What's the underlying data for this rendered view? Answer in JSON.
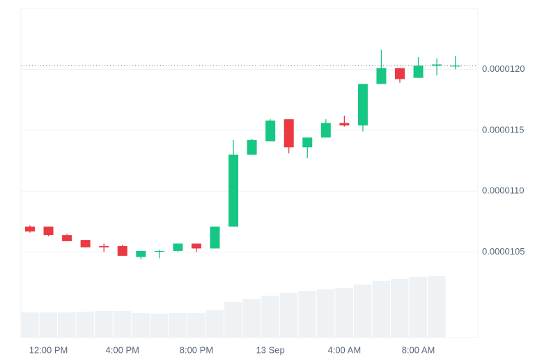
{
  "chart_data": {
    "type": "candlestick",
    "categories": [
      null,
      "12:00 PM",
      null,
      null,
      null,
      "4:00 PM",
      null,
      null,
      null,
      "8:00 PM",
      null,
      null,
      null,
      "13 Sep",
      null,
      null,
      null,
      "4:00 AM",
      null,
      null,
      null,
      "8:00 AM",
      null,
      null
    ],
    "open": [
      1.071e-05,
      1.071e-05,
      1.064e-05,
      1.06e-05,
      1.055e-05,
      1.055e-05,
      1.046e-05,
      1.051e-05,
      1.051e-05,
      1.057e-05,
      1.053e-05,
      1.071e-05,
      1.13e-05,
      1.141e-05,
      1.159e-05,
      1.136e-05,
      1.144e-05,
      1.156e-05,
      1.154e-05,
      1.188e-05,
      1.201e-05,
      1.193e-05,
      1.203e-05,
      1.203e-05
    ],
    "high": [
      1.072e-05,
      1.071e-05,
      1.065e-05,
      1.06e-05,
      1.057e-05,
      1.056e-05,
      1.051e-05,
      1.052e-05,
      1.057e-05,
      1.057e-05,
      1.071e-05,
      1.142e-05,
      1.143e-05,
      1.159e-05,
      1.159e-05,
      1.144e-05,
      1.159e-05,
      1.162e-05,
      1.188e-05,
      1.216e-05,
      1.201e-05,
      1.21e-05,
      1.209e-05,
      1.211e-05
    ],
    "low": [
      1.066e-05,
      1.063e-05,
      1.059e-05,
      1.054e-05,
      1.05e-05,
      1.047e-05,
      1.044e-05,
      1.045e-05,
      1.05e-05,
      1.05e-05,
      1.053e-05,
      1.071e-05,
      1.13e-05,
      1.141e-05,
      1.131e-05,
      1.127e-05,
      1.144e-05,
      1.153e-05,
      1.149e-05,
      1.188e-05,
      1.189e-05,
      1.193e-05,
      1.195e-05,
      1.2e-05
    ],
    "close": [
      1.067e-05,
      1.064e-05,
      1.059e-05,
      1.054e-05,
      1.054e-05,
      1.047e-05,
      1.051e-05,
      1.051e-05,
      1.057e-05,
      1.053e-05,
      1.071e-05,
      1.13e-05,
      1.142e-05,
      1.158e-05,
      1.136e-05,
      1.144e-05,
      1.156e-05,
      1.154e-05,
      1.188e-05,
      1.201e-05,
      1.192e-05,
      1.203e-05,
      1.204e-05,
      1.203e-05
    ],
    "volume": [
      36,
      36,
      36,
      37,
      38,
      38,
      35,
      34,
      35,
      35,
      39,
      51,
      55,
      60,
      64,
      67,
      69,
      71,
      76,
      81,
      84,
      87,
      88,
      null
    ],
    "up_color": "#16c784",
    "down_color": "#ea3943",
    "volume_color": "#eff2f5",
    "ylim": [
      9.8e-06,
      1.25e-05
    ],
    "yticks": [
      {
        "value": 1.05e-05,
        "label": "0.0000105"
      },
      {
        "value": 1.1e-05,
        "label": "0.0000110"
      },
      {
        "value": 1.15e-05,
        "label": "0.0000115"
      },
      {
        "value": 1.2e-05,
        "label": "0.0000120"
      }
    ],
    "grid": true
  }
}
